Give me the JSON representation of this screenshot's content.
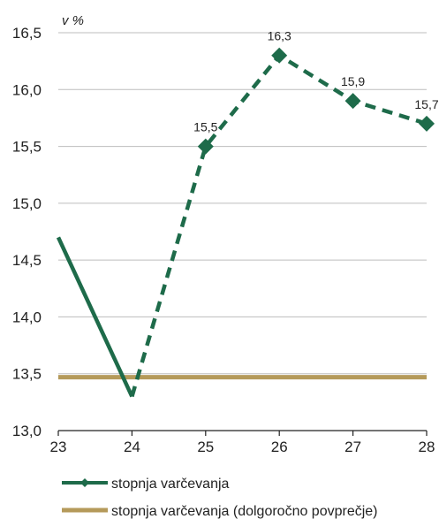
{
  "chart_data": {
    "type": "line",
    "unit_label": "v %",
    "x": [
      "23",
      "24",
      "25",
      "26",
      "27",
      "28"
    ],
    "ylim": [
      13.0,
      16.5
    ],
    "yticks": [
      "13,0",
      "13,5",
      "14,0",
      "14,5",
      "15,0",
      "15,5",
      "16,0",
      "16,5"
    ],
    "ytick_values": [
      13.0,
      13.5,
      14.0,
      14.5,
      15.0,
      15.5,
      16.0,
      16.5
    ],
    "grid": true,
    "series": [
      {
        "name": "stopnja varčevanja",
        "color": "#1e6b4a",
        "actual": [
          {
            "x": 23,
            "y": 14.7
          },
          {
            "x": 24,
            "y": 13.3
          }
        ],
        "forecast": [
          {
            "x": 24,
            "y": 13.3
          },
          {
            "x": 25,
            "y": 15.5,
            "label": "15,5"
          },
          {
            "x": 26,
            "y": 16.3,
            "label": "16,3"
          },
          {
            "x": 27,
            "y": 15.9,
            "label": "15,9"
          },
          {
            "x": 28,
            "y": 15.7,
            "label": "15,7"
          }
        ]
      },
      {
        "name": "stopnja varčevanja (dolgoročno povprečje)",
        "color": "#b59a5a",
        "value": 13.47
      }
    ],
    "legend_position": "bottom-left"
  }
}
